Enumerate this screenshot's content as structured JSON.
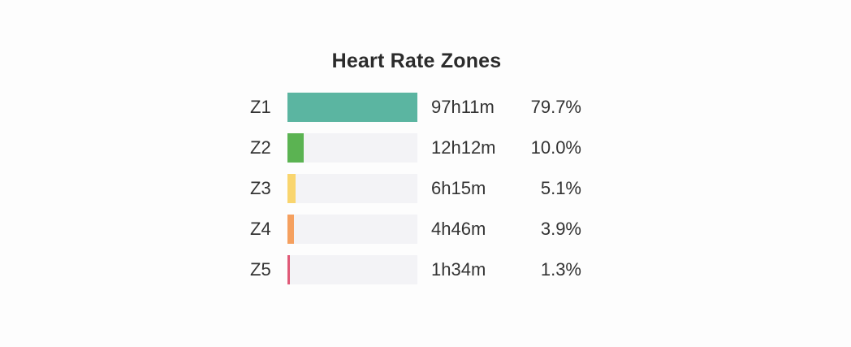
{
  "chart_data": {
    "type": "bar",
    "title": "Heart Rate Zones",
    "categories": [
      "Z1",
      "Z2",
      "Z3",
      "Z4",
      "Z5"
    ],
    "durations": [
      "97h11m",
      "12h12m",
      "6h15m",
      "4h46m",
      "1h34m"
    ],
    "percent_labels": [
      "79.7%",
      "10.0%",
      "5.1%",
      "3.9%",
      "1.3%"
    ],
    "values": [
      79.7,
      10.0,
      5.1,
      3.9,
      1.3
    ],
    "xlim": [
      0,
      79.7
    ],
    "colors": [
      "#5bb5a1",
      "#5bb352",
      "#f9d56e",
      "#f5a05f",
      "#e05a78"
    ],
    "track_color": "#f3f3f6",
    "grid": false,
    "legend": "none"
  }
}
